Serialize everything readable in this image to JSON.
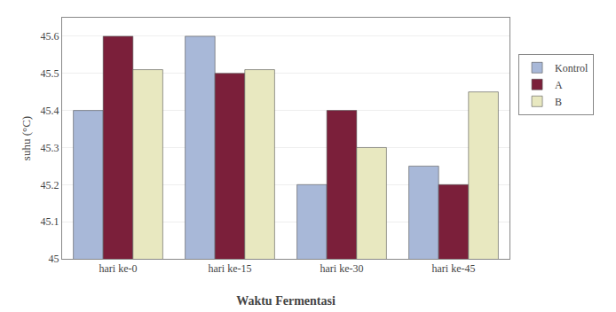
{
  "chart_data": {
    "type": "bar",
    "xlabel": "Waktu Fermentasi",
    "ylabel": "suhu (°C)",
    "categories": [
      "hari ke-0",
      "hari ke-15",
      "hari ke-30",
      "hari ke-45"
    ],
    "series": [
      {
        "name": "Kontrol",
        "color": "#a8b8d8",
        "values": [
          45.4,
          45.6,
          45.2,
          45.25
        ]
      },
      {
        "name": "A",
        "color": "#7b1f3a",
        "values": [
          45.6,
          45.5,
          45.4,
          45.2
        ]
      },
      {
        "name": "B",
        "color": "#e8e8c0",
        "values": [
          45.51,
          45.51,
          45.3,
          45.45
        ]
      }
    ],
    "ylim": [
      45.0,
      45.65
    ],
    "yticks": [
      45,
      45.1,
      45.2,
      45.3,
      45.4,
      45.5,
      45.6
    ],
    "grid": true,
    "legend": "right"
  }
}
